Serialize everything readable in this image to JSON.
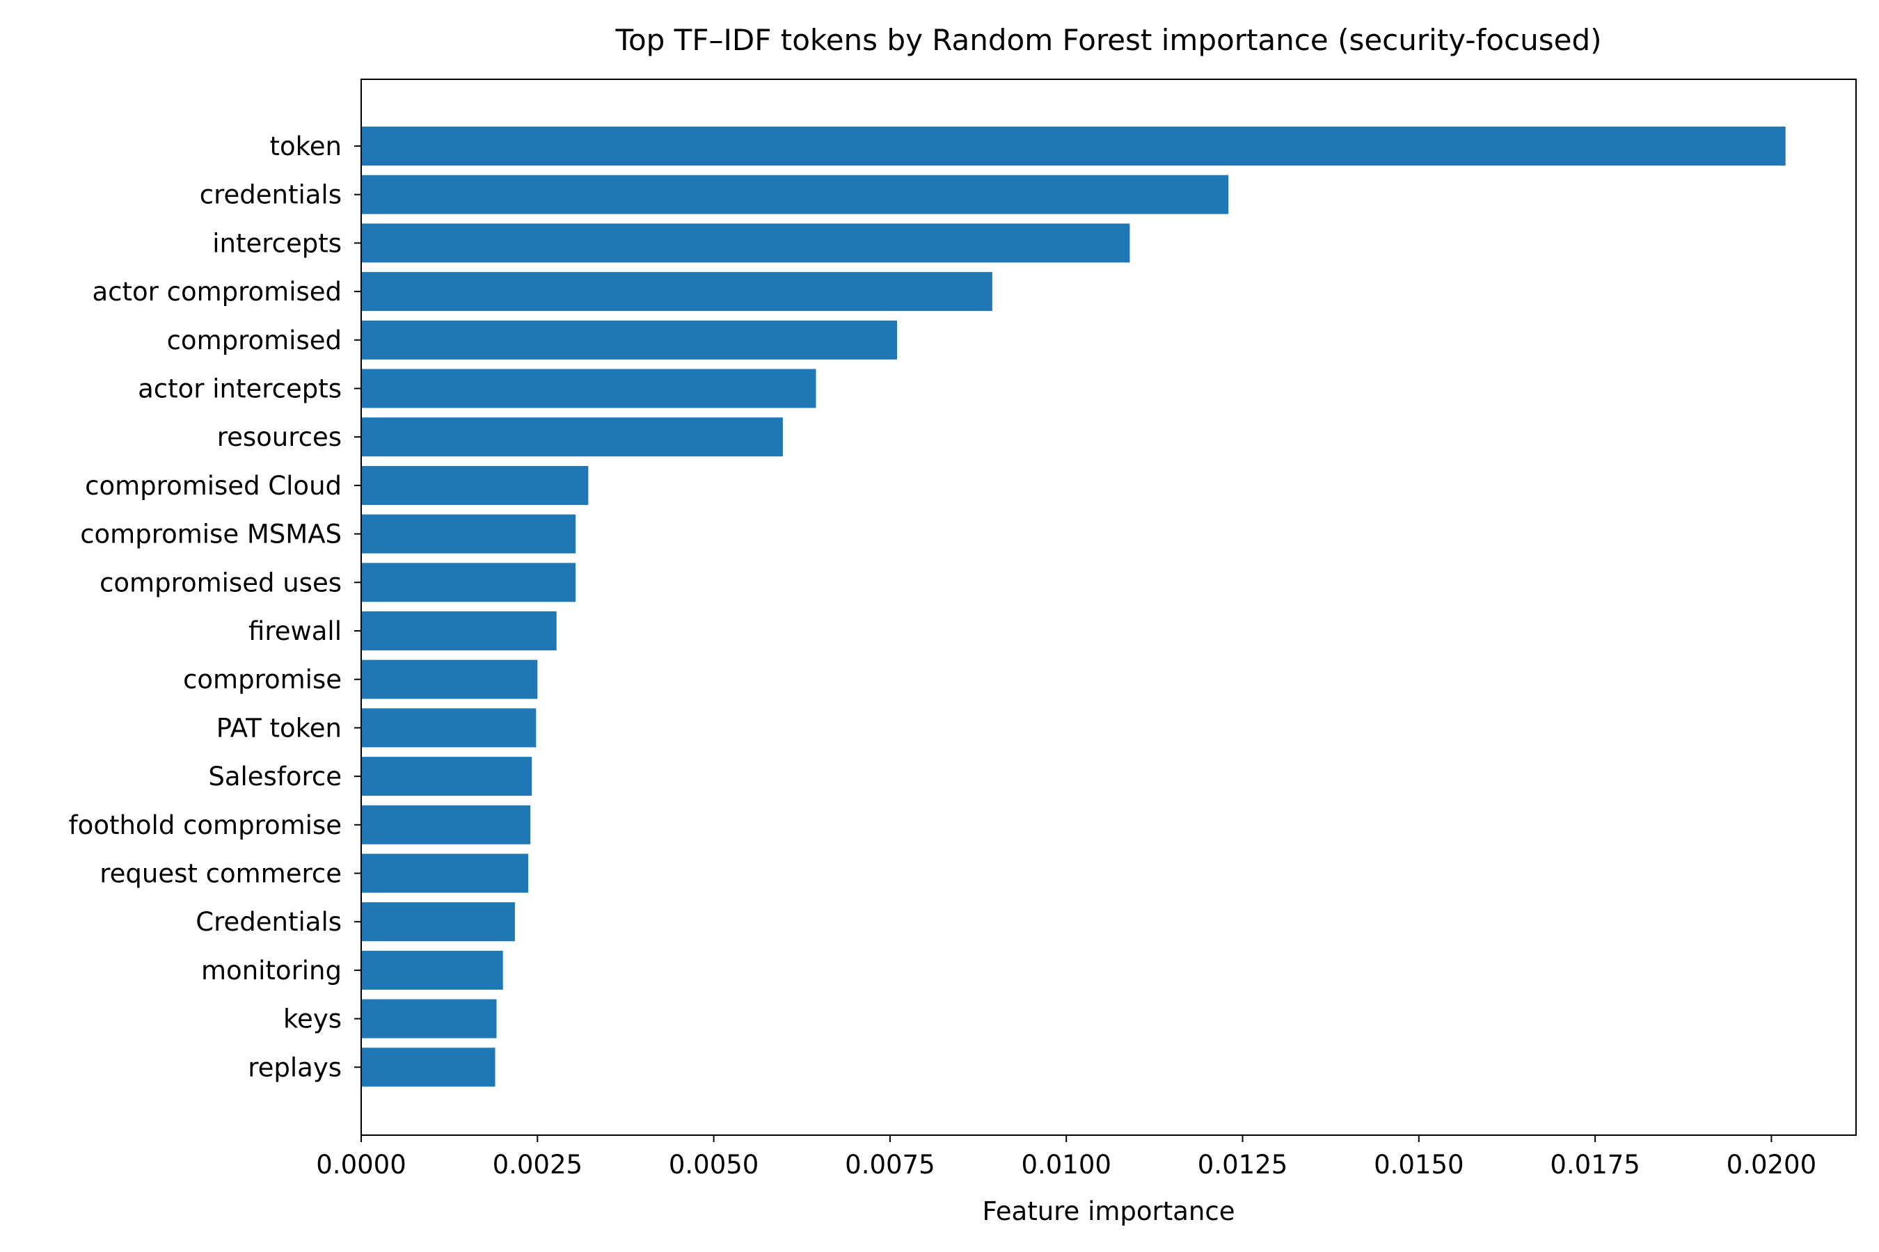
{
  "chart_data": {
    "type": "bar",
    "orientation": "horizontal",
    "title": "Top TF–IDF tokens by Random Forest importance (security-focused)",
    "xlabel": "Feature importance",
    "ylabel": "",
    "xlim": [
      0,
      0.0212
    ],
    "xticks": [
      0.0,
      0.0025,
      0.005,
      0.0075,
      0.01,
      0.0125,
      0.015,
      0.0175,
      0.02
    ],
    "xtick_labels": [
      "0.0000",
      "0.0025",
      "0.0050",
      "0.0075",
      "0.0100",
      "0.0125",
      "0.0150",
      "0.0175",
      "0.0200"
    ],
    "grid": false,
    "bar_color": "#1f77b4",
    "categories": [
      "token",
      "credentials",
      "intercepts",
      "actor compromised",
      "compromised",
      "actor intercepts",
      "resources",
      "compromised Cloud",
      "compromise MSMAS",
      "compromised uses",
      "firewall",
      "compromise",
      "PAT token",
      "Salesforce",
      "foothold compromise",
      "request commerce",
      "Credentials",
      "monitoring",
      "keys",
      "replays"
    ],
    "values": [
      0.0202,
      0.0123,
      0.0109,
      0.00895,
      0.0076,
      0.00645,
      0.00598,
      0.00322,
      0.00304,
      0.00304,
      0.00277,
      0.0025,
      0.00248,
      0.00242,
      0.0024,
      0.00237,
      0.00218,
      0.00201,
      0.00192,
      0.0019
    ]
  }
}
